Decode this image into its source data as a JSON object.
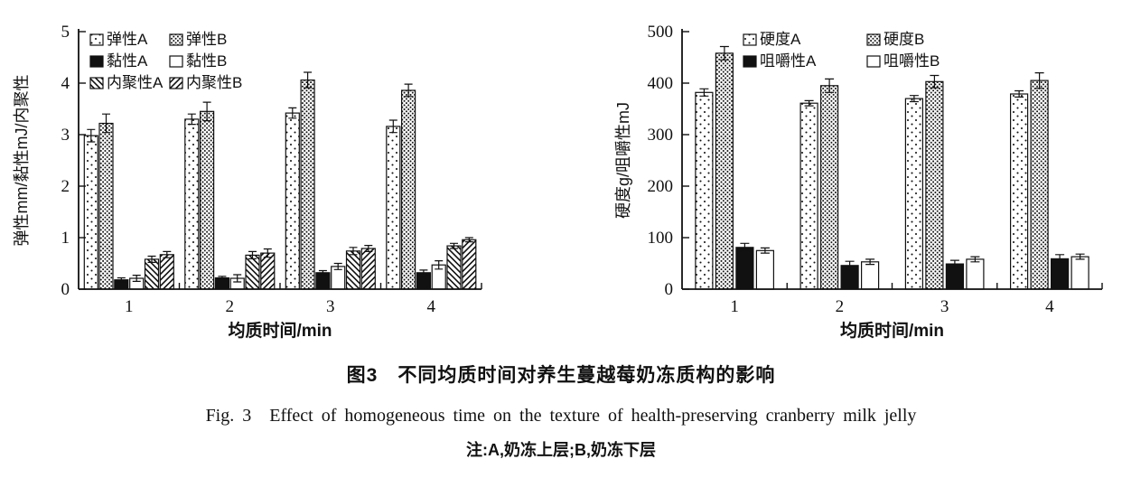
{
  "figure": {
    "caption_cn": "图3　不同均质时间对养生蔓越莓奶冻质构的影响",
    "caption_en": "Fig. 3　Effect of homogeneous time on the texture of health-preserving cranberry milk jelly",
    "note": "注:A,奶冻上层;B,奶冻下层"
  },
  "colors": {
    "ink": "#111111",
    "background": "#ffffff"
  },
  "chart_data": [
    {
      "type": "bar",
      "title": "",
      "xlabel": "均质时间/min",
      "ylabel": "弹性mm/黏性mJ/内聚性",
      "ylim": [
        0,
        5
      ],
      "yticks": [
        0,
        1,
        2,
        3,
        4,
        5
      ],
      "categories": [
        "1",
        "2",
        "3",
        "4"
      ],
      "grid": false,
      "legend_position": "top-left-inside",
      "legend_columns": 2,
      "error_bars": true,
      "series": [
        {
          "name": "弹性A",
          "pattern": "sparse-dots",
          "values": [
            2.98,
            3.3,
            3.42,
            3.16
          ],
          "errors": [
            0.12,
            0.1,
            0.1,
            0.12
          ]
        },
        {
          "name": "弹性B",
          "pattern": "dense-dots",
          "values": [
            3.22,
            3.45,
            4.06,
            3.86
          ],
          "errors": [
            0.18,
            0.18,
            0.15,
            0.12
          ]
        },
        {
          "name": "黏性A",
          "pattern": "solid-black",
          "values": [
            0.18,
            0.22,
            0.32,
            0.32
          ],
          "errors": [
            0.04,
            0.03,
            0.04,
            0.05
          ]
        },
        {
          "name": "黏性B",
          "pattern": "hollow-white",
          "values": [
            0.21,
            0.21,
            0.44,
            0.47
          ],
          "errors": [
            0.06,
            0.07,
            0.06,
            0.08
          ]
        },
        {
          "name": "内聚性A",
          "pattern": "backslash-hatch",
          "values": [
            0.58,
            0.66,
            0.74,
            0.84
          ],
          "errors": [
            0.06,
            0.07,
            0.07,
            0.05
          ]
        },
        {
          "name": "内聚性B",
          "pattern": "slash-hatch",
          "values": [
            0.67,
            0.7,
            0.79,
            0.96
          ],
          "errors": [
            0.06,
            0.08,
            0.06,
            0.04
          ]
        }
      ]
    },
    {
      "type": "bar",
      "title": "",
      "xlabel": "均质时间/min",
      "ylabel": "硬度g/咀嚼性mJ",
      "ylim": [
        0,
        500
      ],
      "yticks": [
        0,
        100,
        200,
        300,
        400,
        500
      ],
      "categories": [
        "1",
        "2",
        "3",
        "4"
      ],
      "grid": false,
      "legend_position": "top-right-inside",
      "legend_columns": 2,
      "error_bars": true,
      "series": [
        {
          "name": "硬度A",
          "pattern": "sparse-dots",
          "values": [
            382,
            361,
            370,
            379
          ],
          "errors": [
            7,
            5,
            6,
            6
          ]
        },
        {
          "name": "硬度B",
          "pattern": "dense-dots",
          "values": [
            458,
            395,
            403,
            405
          ],
          "errors": [
            13,
            13,
            12,
            15
          ]
        },
        {
          "name": "咀嚼性A",
          "pattern": "solid-black",
          "values": [
            81,
            46,
            49,
            59
          ],
          "errors": [
            8,
            8,
            7,
            8
          ]
        },
        {
          "name": "咀嚼性B",
          "pattern": "hollow-white",
          "values": [
            75,
            53,
            58,
            63
          ],
          "errors": [
            5,
            5,
            5,
            5
          ]
        }
      ]
    }
  ]
}
